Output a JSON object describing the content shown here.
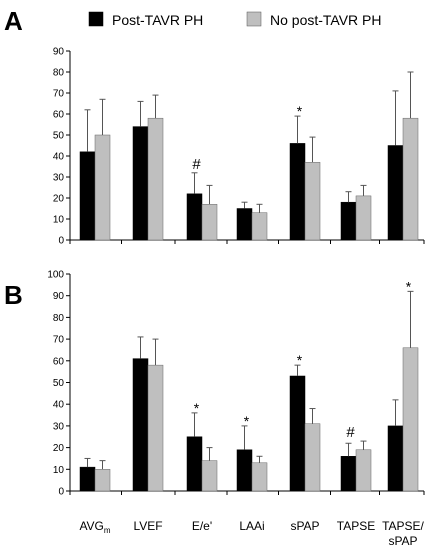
{
  "panel_labels": [
    "A",
    "B"
  ],
  "legend": {
    "entries": [
      {
        "name": "Post-TAVR PH",
        "color": "#000000"
      },
      {
        "name": "No post-TAVR PH",
        "color": "#bfbfbf"
      }
    ],
    "placement": "top"
  },
  "category_labels": [
    {
      "main": "AVG",
      "sub": "m"
    },
    {
      "main": "LVEF"
    },
    {
      "main": "E/e'"
    },
    {
      "main": "LAAi"
    },
    {
      "main": "sPAP"
    },
    {
      "main": "TAPSE"
    },
    {
      "main": "TAPSE/",
      "line2": "sPAP"
    }
  ],
  "chart_data": [
    {
      "type": "bar",
      "panel": "A",
      "categories": [
        "AVGm",
        "LVEF",
        "E/e'",
        "LAAi",
        "sPAP",
        "TAPSE",
        "TAPSE/sPAP"
      ],
      "ylim": [
        0,
        90
      ],
      "yticks": [
        0,
        10,
        20,
        30,
        40,
        50,
        60,
        70,
        80,
        90
      ],
      "grid": false,
      "series": [
        {
          "name": "Post-TAVR PH",
          "color": "#000000",
          "values": [
            42,
            54,
            22,
            15,
            46,
            18,
            45
          ],
          "errors": [
            20,
            12,
            10,
            3,
            13,
            5,
            26
          ]
        },
        {
          "name": "No post-TAVR PH",
          "color": "#bfbfbf",
          "values": [
            50,
            58,
            17,
            13,
            37,
            21,
            58
          ],
          "errors": [
            17,
            11,
            9,
            4,
            12,
            5,
            22
          ]
        }
      ],
      "annotations": [
        {
          "category": 2,
          "text": "#"
        },
        {
          "category": 4,
          "text": "*"
        }
      ]
    },
    {
      "type": "bar",
      "panel": "B",
      "categories": [
        "AVGm",
        "LVEF",
        "E/e'",
        "LAAi",
        "sPAP",
        "TAPSE",
        "TAPSE/sPAP"
      ],
      "ylim": [
        0,
        100
      ],
      "yticks": [
        0,
        10,
        20,
        30,
        40,
        50,
        60,
        70,
        80,
        90,
        100
      ],
      "grid": false,
      "series": [
        {
          "name": "Post-TAVR PH",
          "color": "#000000",
          "values": [
            11,
            61,
            25,
            19,
            53,
            16,
            30
          ],
          "errors": [
            4,
            10,
            11,
            11,
            5,
            6,
            12
          ]
        },
        {
          "name": "No post-TAVR PH",
          "color": "#bfbfbf",
          "values": [
            10,
            58,
            14,
            13,
            31,
            19,
            66
          ],
          "errors": [
            4,
            12,
            6,
            3,
            7,
            4,
            26
          ]
        }
      ],
      "annotations": [
        {
          "category": 2,
          "text": "*"
        },
        {
          "category": 3,
          "text": "*"
        },
        {
          "category": 4,
          "text": "*"
        },
        {
          "category": 5,
          "text": "#"
        },
        {
          "category": 6,
          "text": "*"
        }
      ]
    }
  ]
}
